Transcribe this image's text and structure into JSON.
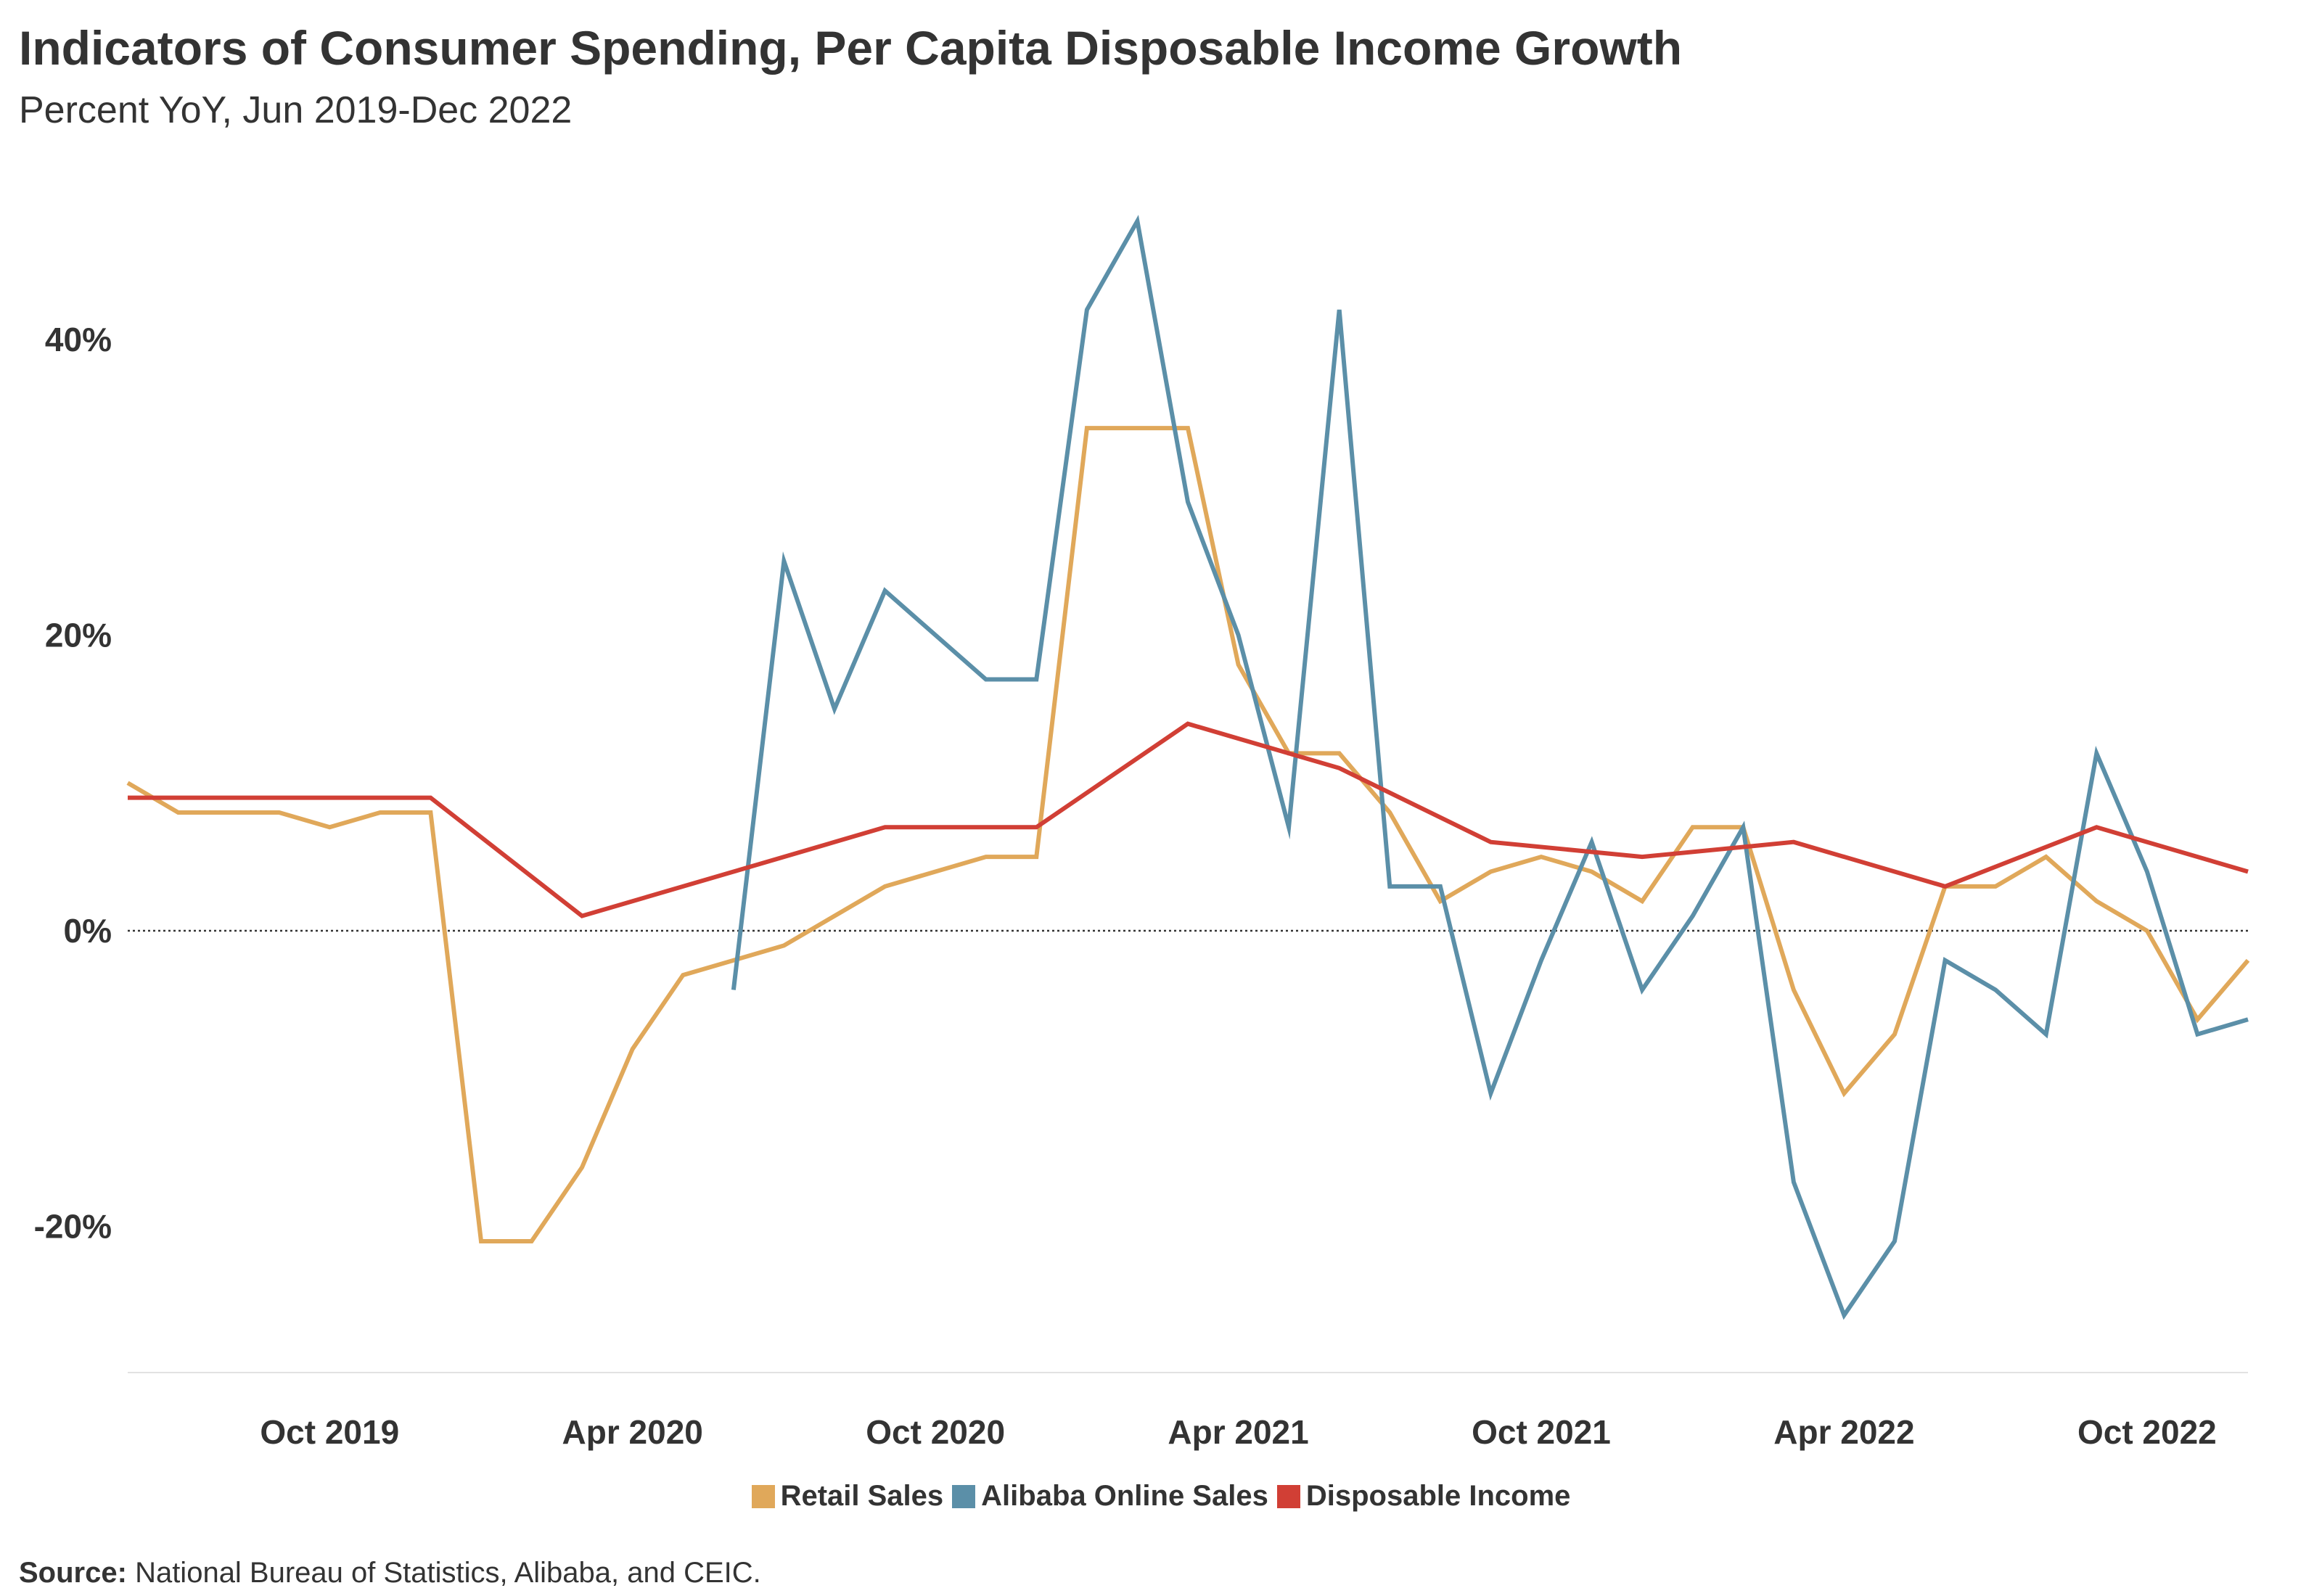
{
  "header": {
    "title": "Indicators of Consumer Spending, Per Capita Disposable Income Growth",
    "subtitle": "Percent YoY, Jun 2019-Dec 2022"
  },
  "footer": {
    "source_label": "Source:",
    "source_text": "National Bureau of Statistics, Alibaba, and CEIC."
  },
  "chart_data": {
    "type": "line",
    "title": "Indicators of Consumer Spending, Per Capita Disposable Income Growth",
    "subtitle": "Percent YoY, Jun 2019-Dec 2022",
    "xlabel": "",
    "ylabel": "",
    "x_range": [
      "2019-06",
      "2022-12"
    ],
    "ylim": [
      -30,
      48
    ],
    "y_ticks": [
      -20,
      0,
      20,
      40
    ],
    "y_tick_labels": [
      "-20%",
      "0%",
      "20%",
      "40%"
    ],
    "x_ticks": [
      "2019-10",
      "2020-04",
      "2020-10",
      "2021-04",
      "2021-10",
      "2022-04",
      "2022-10"
    ],
    "x_tick_labels": [
      "Oct 2019",
      "Apr 2020",
      "Oct 2020",
      "Apr 2021",
      "Oct 2021",
      "Apr 2022",
      "Oct 2022"
    ],
    "zero_line": "dotted",
    "grid": false,
    "legend_position": "bottom-center",
    "series": [
      {
        "name": "Retail Sales",
        "color": "#e0a85a",
        "points": [
          [
            "2019-06",
            10
          ],
          [
            "2019-07",
            8
          ],
          [
            "2019-08",
            8
          ],
          [
            "2019-09",
            8
          ],
          [
            "2019-10",
            7
          ],
          [
            "2019-11",
            8
          ],
          [
            "2019-12",
            8
          ],
          [
            "2020-01",
            -21
          ],
          [
            "2020-02",
            -21
          ],
          [
            "2020-03",
            -16
          ],
          [
            "2020-04",
            -8
          ],
          [
            "2020-05",
            -3
          ],
          [
            "2020-06",
            -2
          ],
          [
            "2020-07",
            -1
          ],
          [
            "2020-08",
            1
          ],
          [
            "2020-09",
            3
          ],
          [
            "2020-10",
            4
          ],
          [
            "2020-11",
            5
          ],
          [
            "2020-12",
            5
          ],
          [
            "2021-01",
            34
          ],
          [
            "2021-02",
            34
          ],
          [
            "2021-03",
            34
          ],
          [
            "2021-04",
            18
          ],
          [
            "2021-05",
            12
          ],
          [
            "2021-06",
            12
          ],
          [
            "2021-07",
            8
          ],
          [
            "2021-08",
            2
          ],
          [
            "2021-09",
            4
          ],
          [
            "2021-10",
            5
          ],
          [
            "2021-11",
            4
          ],
          [
            "2021-12",
            2
          ],
          [
            "2022-01",
            7
          ],
          [
            "2022-02",
            7
          ],
          [
            "2022-03",
            -4
          ],
          [
            "2022-04",
            -11
          ],
          [
            "2022-05",
            -7
          ],
          [
            "2022-06",
            3
          ],
          [
            "2022-07",
            3
          ],
          [
            "2022-08",
            5
          ],
          [
            "2022-09",
            2
          ],
          [
            "2022-10",
            0
          ],
          [
            "2022-11",
            -6
          ],
          [
            "2022-12",
            -2
          ]
        ]
      },
      {
        "name": "Alibaba Online Sales",
        "color": "#5b8fa8",
        "points": [
          [
            "2020-06",
            -4
          ],
          [
            "2020-07",
            25
          ],
          [
            "2020-08",
            15
          ],
          [
            "2020-09",
            23
          ],
          [
            "2020-10",
            20
          ],
          [
            "2020-11",
            17
          ],
          [
            "2020-12",
            17
          ],
          [
            "2021-01",
            42
          ],
          [
            "2021-02",
            48
          ],
          [
            "2021-03",
            29
          ],
          [
            "2021-04",
            20
          ],
          [
            "2021-05",
            7
          ],
          [
            "2021-06",
            42
          ],
          [
            "2021-07",
            3
          ],
          [
            "2021-08",
            3
          ],
          [
            "2021-09",
            -11
          ],
          [
            "2021-10",
            -2
          ],
          [
            "2021-11",
            6
          ],
          [
            "2021-12",
            -4
          ],
          [
            "2022-01",
            1
          ],
          [
            "2022-02",
            7
          ],
          [
            "2022-03",
            -17
          ],
          [
            "2022-04",
            -26
          ],
          [
            "2022-05",
            -21
          ],
          [
            "2022-06",
            -2
          ],
          [
            "2022-07",
            -4
          ],
          [
            "2022-08",
            -7
          ],
          [
            "2022-09",
            12
          ],
          [
            "2022-10",
            4
          ],
          [
            "2022-11",
            -7
          ],
          [
            "2022-12",
            -6
          ]
        ]
      },
      {
        "name": "Disposable Income",
        "color": "#d13f35",
        "points": [
          [
            "2019-06",
            9
          ],
          [
            "2019-12",
            9
          ],
          [
            "2020-03",
            1
          ],
          [
            "2020-06",
            4
          ],
          [
            "2020-09",
            7
          ],
          [
            "2020-12",
            7
          ],
          [
            "2021-03",
            14
          ],
          [
            "2021-06",
            11
          ],
          [
            "2021-09",
            6
          ],
          [
            "2021-12",
            5
          ],
          [
            "2022-03",
            6
          ],
          [
            "2022-06",
            3
          ],
          [
            "2022-09",
            7
          ],
          [
            "2022-12",
            4
          ]
        ]
      }
    ]
  }
}
